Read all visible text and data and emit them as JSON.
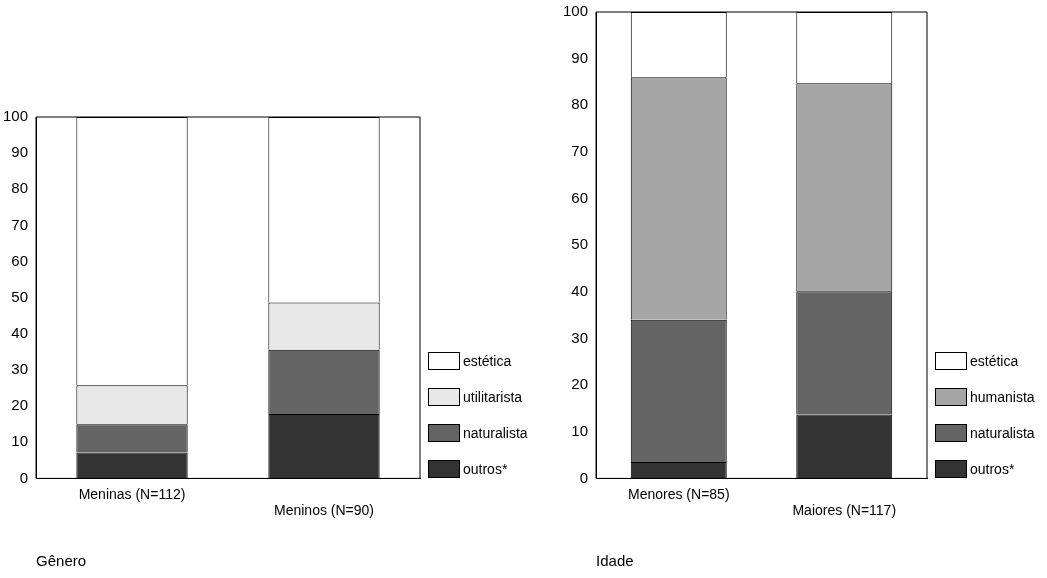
{
  "chart_data": [
    {
      "type": "bar",
      "stacked": true,
      "xlabel": "Gênero",
      "categories": [
        "Meninas (N=112)",
        "Meninos (N=90)"
      ],
      "ylim": [
        0,
        100
      ],
      "yticks": [
        0,
        10,
        20,
        30,
        40,
        50,
        60,
        70,
        80,
        90,
        100
      ],
      "grid": false,
      "legend": "right",
      "series": [
        {
          "name": "outros*",
          "color": "#333333",
          "values": [
            7.2,
            17.8
          ]
        },
        {
          "name": "naturalista",
          "color": "#646464",
          "values": [
            7.8,
            17.8
          ]
        },
        {
          "name": "utilitarista",
          "color": "#e8e8e8",
          "values": [
            10.8,
            13.1
          ]
        },
        {
          "name": "estética",
          "color": "#ffffff",
          "values": [
            74.2,
            51.3
          ]
        }
      ]
    },
    {
      "type": "bar",
      "stacked": true,
      "xlabel": "Idade",
      "categories": [
        "Menores (N=85)",
        "Maiores (N=117)"
      ],
      "ylim": [
        0,
        100
      ],
      "yticks": [
        0,
        10,
        20,
        30,
        40,
        50,
        60,
        70,
        80,
        90,
        100
      ],
      "grid": false,
      "legend": "right",
      "series": [
        {
          "name": "outros*",
          "color": "#333333",
          "values": [
            3.5,
            13.7
          ]
        },
        {
          "name": "naturalista",
          "color": "#646464",
          "values": [
            30.5,
            26.4
          ]
        },
        {
          "name": "humanista",
          "color": "#a6a6a6",
          "values": [
            52.0,
            44.6
          ]
        },
        {
          "name": "estética",
          "color": "#ffffff",
          "values": [
            14.0,
            15.3
          ]
        }
      ]
    }
  ]
}
